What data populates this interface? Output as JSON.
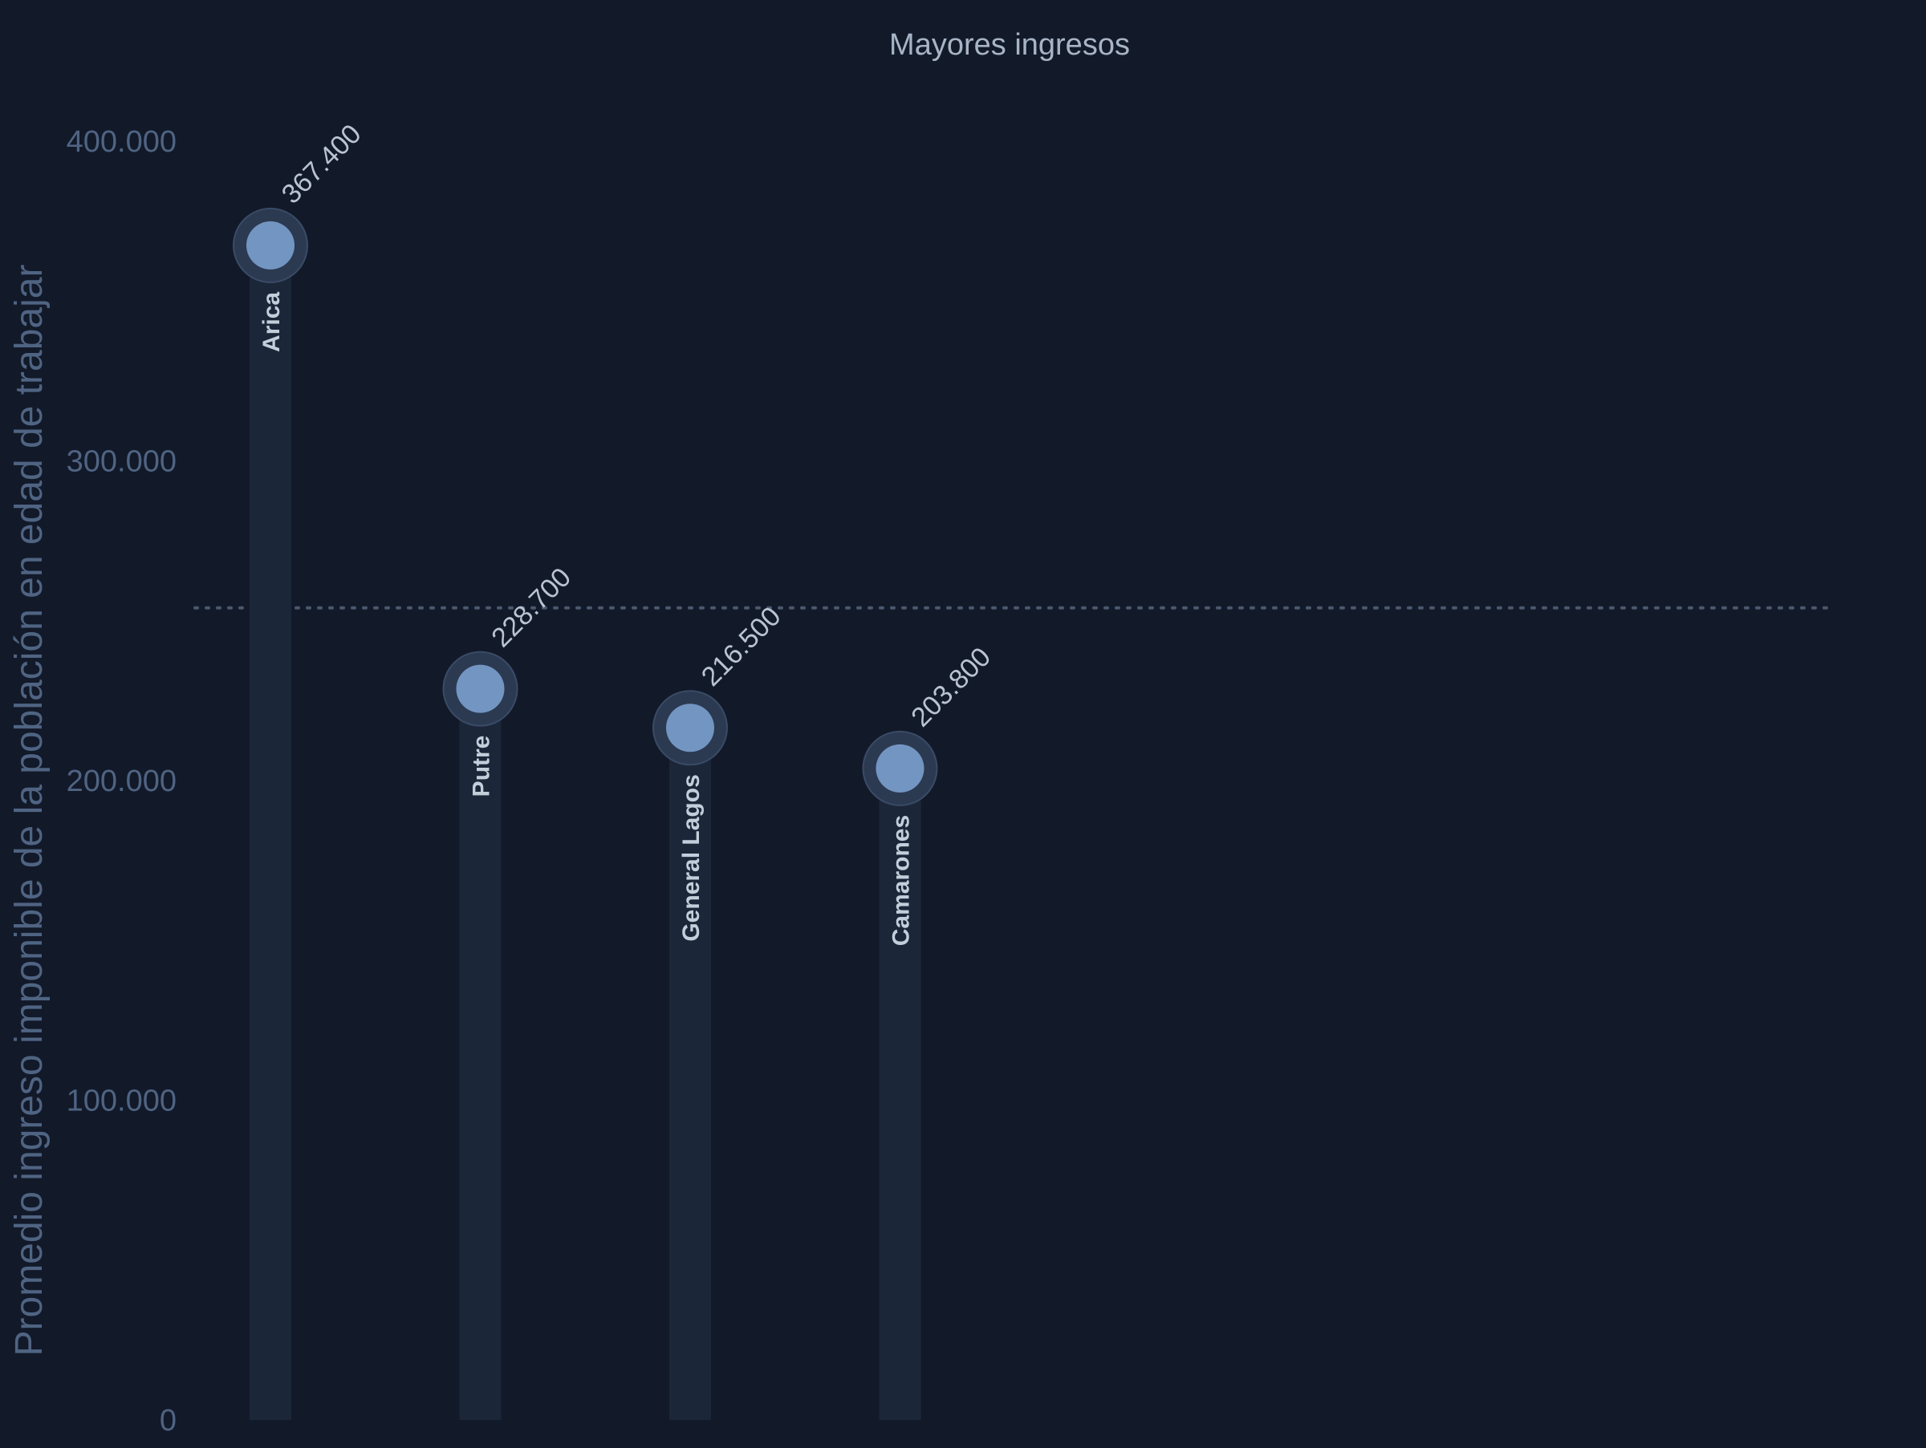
{
  "chart_data": {
    "type": "lollipop",
    "title": "Mayores ingresos",
    "ylabel": "Promedio ingreso imponible de la población en edad de trabajar",
    "xlabel": "",
    "ylim": [
      0,
      400000
    ],
    "yticks": [
      0,
      100000,
      200000,
      300000,
      400000
    ],
    "ytick_labels": [
      "0",
      "100.000",
      "200.000",
      "300.000",
      "400.000"
    ],
    "categories": [
      "Arica",
      "Putre",
      "General Lagos",
      "Camarones"
    ],
    "values": [
      367400,
      228700,
      216500,
      203800
    ],
    "value_labels": [
      "367.400",
      "228.700",
      "216.500",
      "203.800"
    ],
    "reference_line": 254000,
    "grid": false,
    "legend": "none",
    "colors": {
      "background": "#121929",
      "stem": "#1b2739",
      "dot": "#7395c2",
      "halo": "#2b3a51"
    }
  }
}
